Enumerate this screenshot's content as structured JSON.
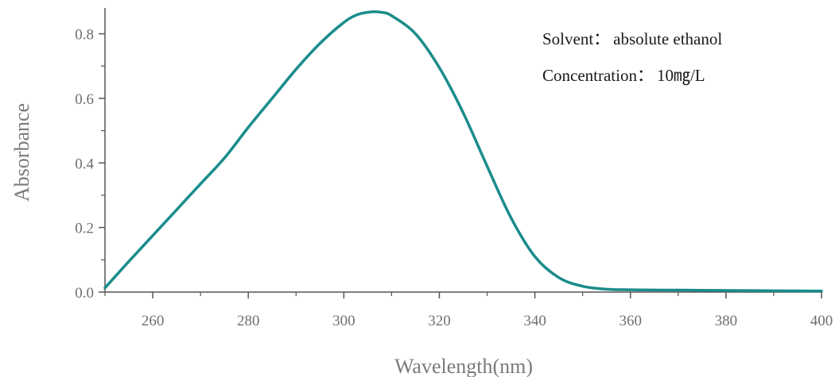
{
  "chart_data": {
    "type": "line",
    "title": "",
    "xlabel": "Wavelength(nm)",
    "ylabel": "Absorbance",
    "xlim": [
      250,
      400
    ],
    "ylim": [
      0,
      0.88
    ],
    "x_ticks": [
      260,
      280,
      300,
      320,
      340,
      360,
      380,
      400
    ],
    "x_tick_labels": [
      "260",
      "280",
      "300",
      "320",
      "340",
      "360",
      "380",
      "400"
    ],
    "y_ticks": [
      0.0,
      0.2,
      0.4,
      0.6,
      0.8
    ],
    "y_tick_labels": [
      "0.0",
      "0.2",
      "0.4",
      "0.6",
      "0.8"
    ],
    "grid": false,
    "series": [
      {
        "color": "#1a8c8c",
        "x": [
          250,
          255,
          260,
          265,
          270,
          275,
          280,
          285,
          290,
          295,
          300,
          303,
          306,
          308,
          310,
          315,
          320,
          325,
          330,
          335,
          340,
          345,
          350,
          355,
          360,
          370,
          380,
          390,
          400
        ],
        "y": [
          0.013,
          0.095,
          0.175,
          0.255,
          0.335,
          0.415,
          0.51,
          0.6,
          0.69,
          0.77,
          0.835,
          0.86,
          0.868,
          0.866,
          0.856,
          0.8,
          0.695,
          0.555,
          0.39,
          0.23,
          0.11,
          0.045,
          0.018,
          0.009,
          0.007,
          0.006,
          0.005,
          0.004,
          0.003
        ]
      }
    ],
    "annotations": [
      {
        "label": "Solvent：",
        "value": "absolute ethanol"
      },
      {
        "label": "Concentration：",
        "value": "10㎎/L"
      }
    ]
  }
}
